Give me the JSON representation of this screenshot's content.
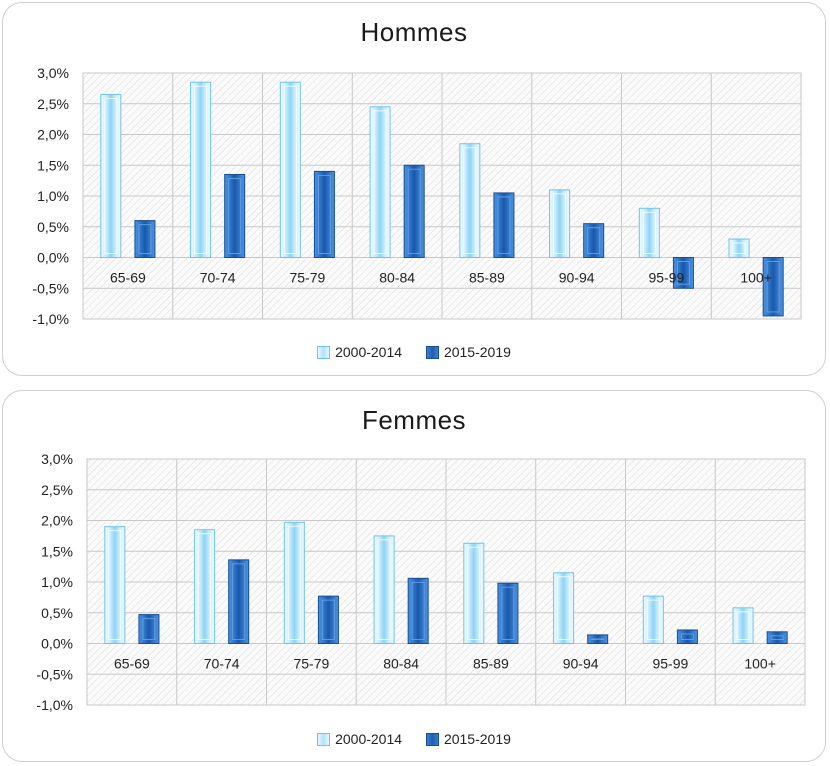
{
  "charts": [
    {
      "title": "Hommes",
      "legend": [
        "2000-2014",
        "2015-2019"
      ]
    },
    {
      "title": "Femmes",
      "legend": [
        "2000-2014",
        "2015-2019"
      ]
    }
  ],
  "colors": {
    "series_a_light": "#dff3ff",
    "series_a_edge": "#6fc3ea",
    "series_b_dark": "#1f5fb3",
    "series_b_edge": "#174d94",
    "grid": "#c8c8c8"
  },
  "chart_data": [
    {
      "type": "bar",
      "title": "Hommes",
      "categories": [
        "65-69",
        "70-74",
        "75-79",
        "80-84",
        "85-89",
        "90-94",
        "95-99",
        "100+"
      ],
      "series": [
        {
          "name": "2000-2014",
          "values": [
            2.65,
            2.85,
            2.85,
            2.45,
            1.85,
            1.1,
            0.8,
            0.3
          ]
        },
        {
          "name": "2015-2019",
          "values": [
            0.6,
            1.35,
            1.4,
            1.5,
            1.05,
            0.55,
            -0.5,
            -0.95
          ]
        }
      ],
      "y_tick_labels": [
        "3,0%",
        "2,5%",
        "2,0%",
        "1,5%",
        "1,0%",
        "0,5%",
        "0,0%",
        "-0,5%",
        "-1,0%"
      ],
      "ylim": [
        -1.0,
        3.0
      ],
      "grid": true,
      "legend_position": "bottom"
    },
    {
      "type": "bar",
      "title": "Femmes",
      "categories": [
        "65-69",
        "70-74",
        "75-79",
        "80-84",
        "85-89",
        "90-94",
        "95-99",
        "100+"
      ],
      "series": [
        {
          "name": "2000-2014",
          "values": [
            1.9,
            1.85,
            1.97,
            1.75,
            1.63,
            1.15,
            0.77,
            0.58
          ]
        },
        {
          "name": "2015-2019",
          "values": [
            0.47,
            1.36,
            0.77,
            1.06,
            0.98,
            0.14,
            0.22,
            0.19
          ]
        }
      ],
      "y_tick_labels": [
        "3,0%",
        "2,5%",
        "2,0%",
        "1,5%",
        "1,0%",
        "0,5%",
        "0,0%",
        "-0,5%",
        "-1,0%"
      ],
      "ylim": [
        -1.0,
        3.0
      ],
      "grid": true,
      "legend_position": "bottom"
    }
  ]
}
